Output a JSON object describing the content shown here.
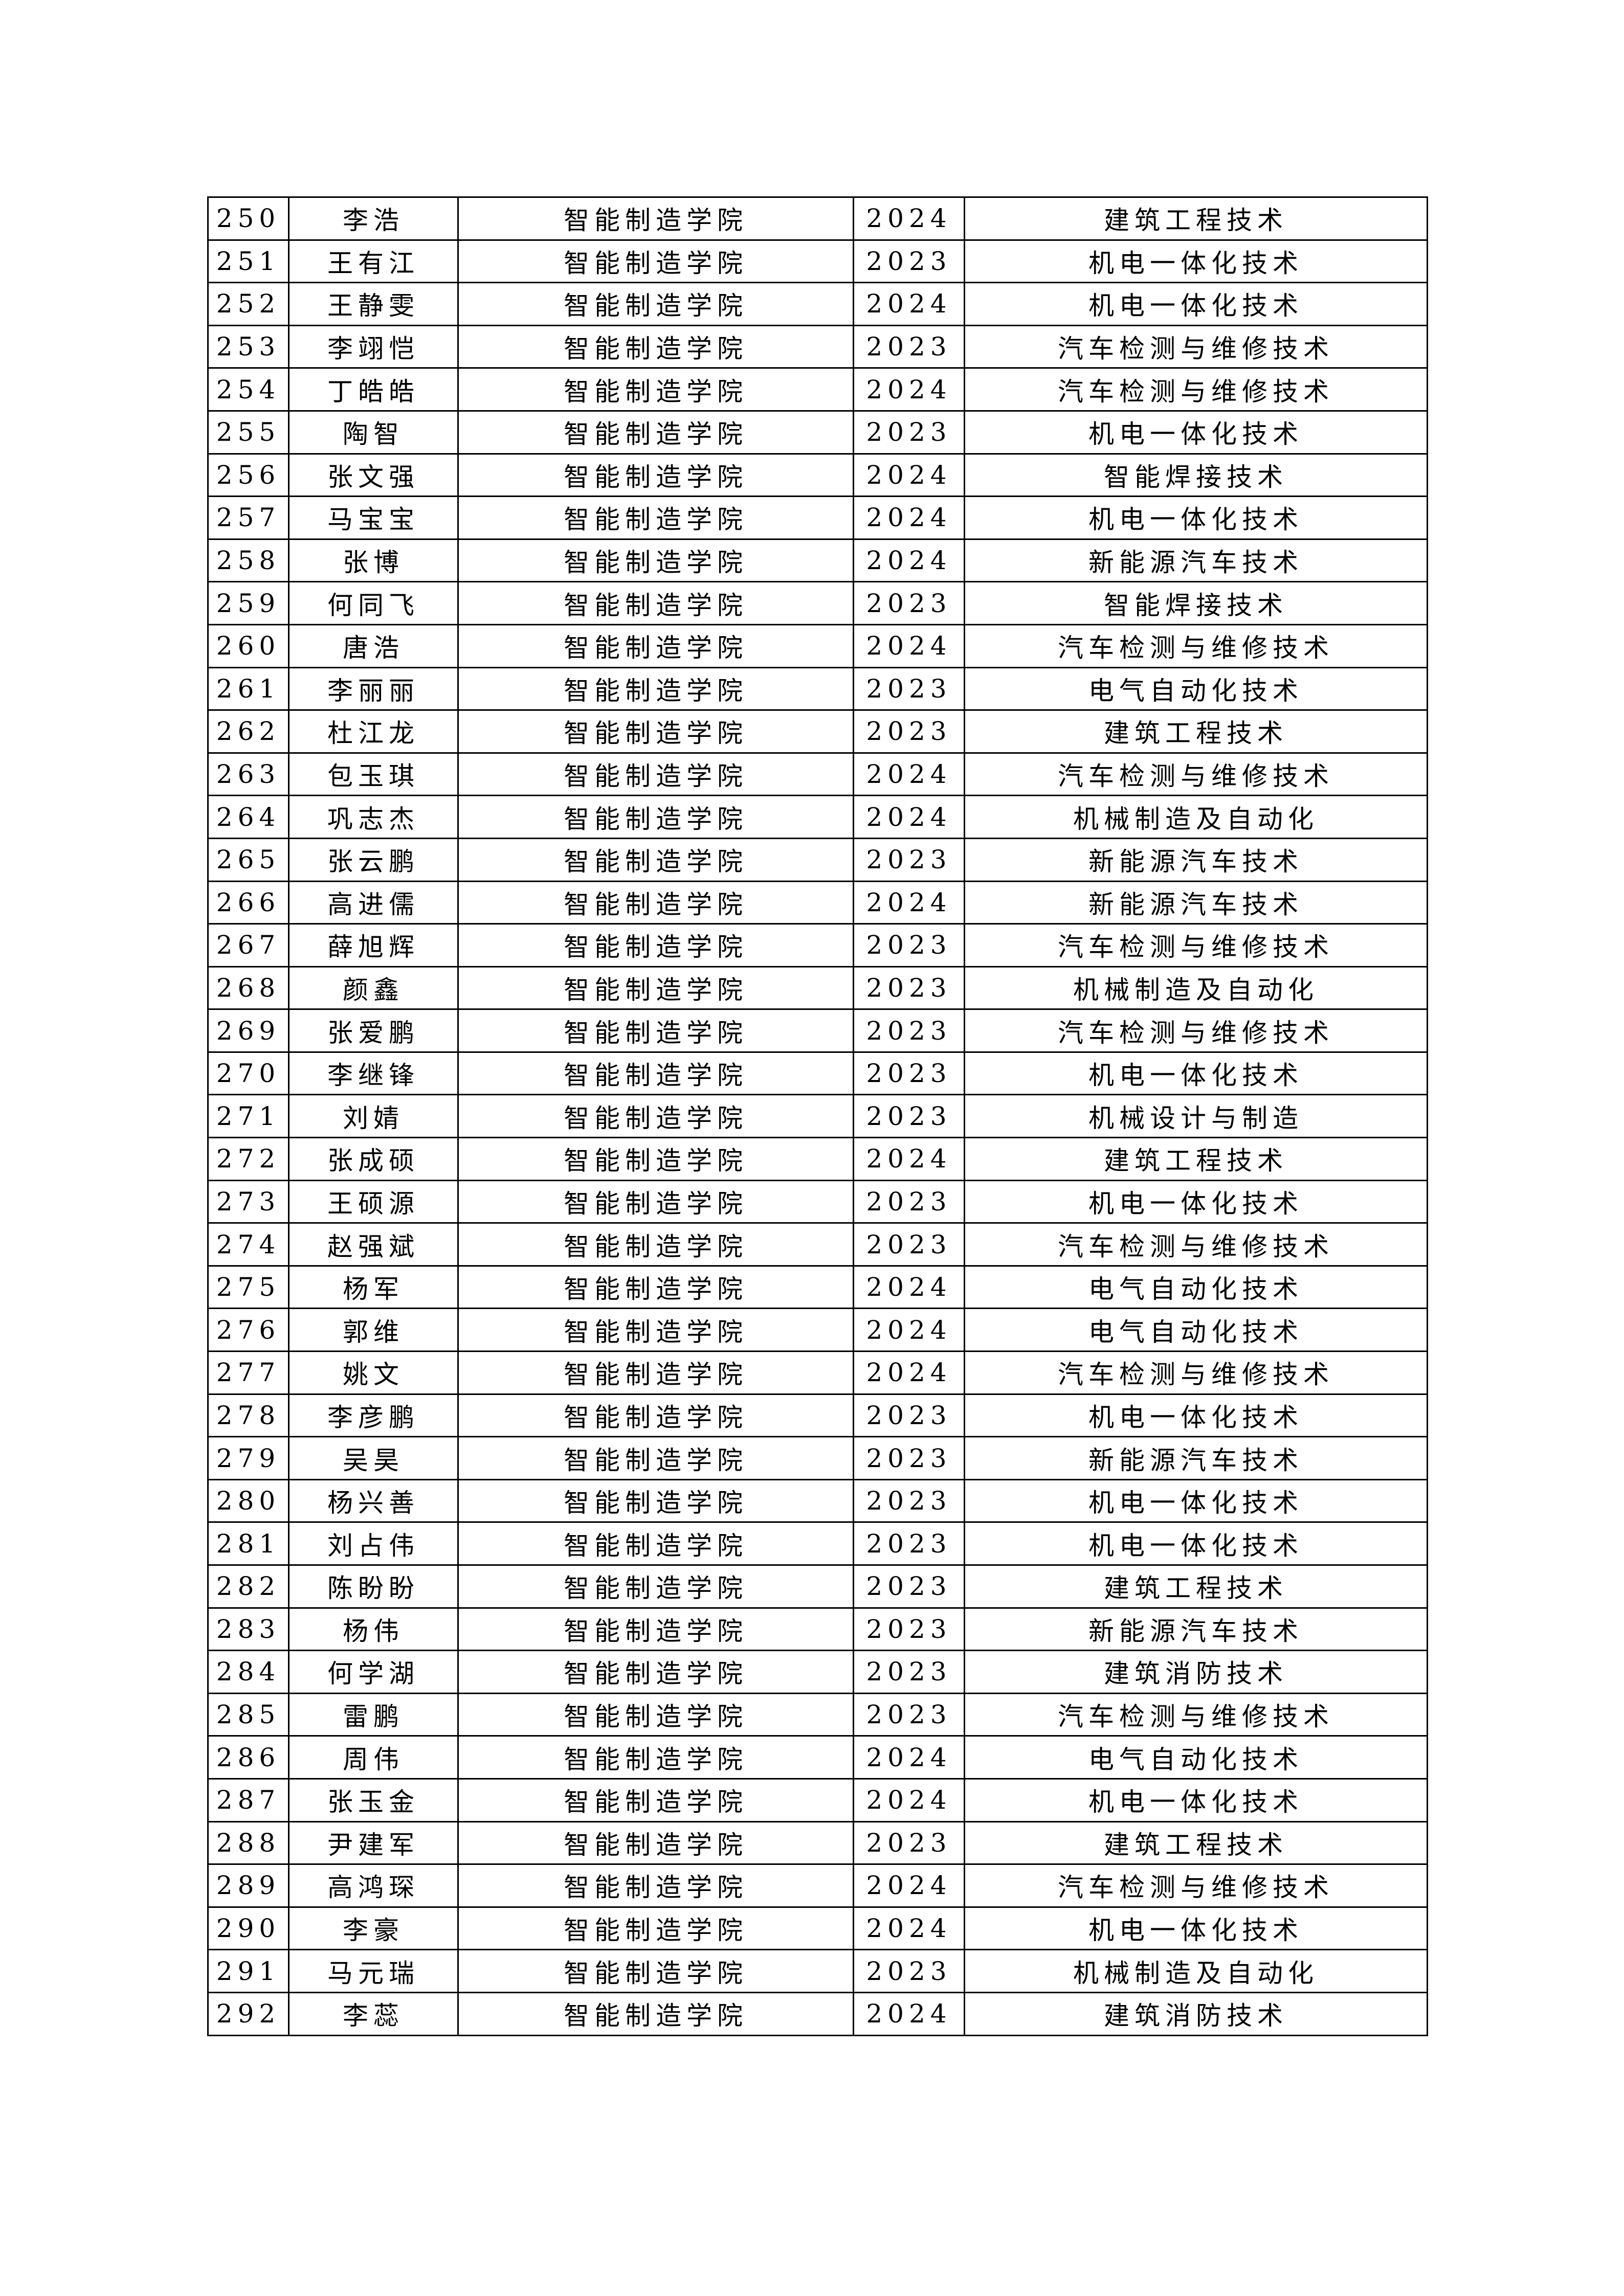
{
  "table": {
    "columns": [
      "no",
      "name",
      "college",
      "grade",
      "major"
    ],
    "rows": [
      [
        "250",
        "李浩",
        "智能制造学院",
        "2024",
        "建筑工程技术"
      ],
      [
        "251",
        "王有江",
        "智能制造学院",
        "2023",
        "机电一体化技术"
      ],
      [
        "252",
        "王静雯",
        "智能制造学院",
        "2024",
        "机电一体化技术"
      ],
      [
        "253",
        "李翊恺",
        "智能制造学院",
        "2023",
        "汽车检测与维修技术"
      ],
      [
        "254",
        "丁皓皓",
        "智能制造学院",
        "2024",
        "汽车检测与维修技术"
      ],
      [
        "255",
        "陶智",
        "智能制造学院",
        "2023",
        "机电一体化技术"
      ],
      [
        "256",
        "张文强",
        "智能制造学院",
        "2024",
        "智能焊接技术"
      ],
      [
        "257",
        "马宝宝",
        "智能制造学院",
        "2024",
        "机电一体化技术"
      ],
      [
        "258",
        "张博",
        "智能制造学院",
        "2024",
        "新能源汽车技术"
      ],
      [
        "259",
        "何同飞",
        "智能制造学院",
        "2023",
        "智能焊接技术"
      ],
      [
        "260",
        "唐浩",
        "智能制造学院",
        "2024",
        "汽车检测与维修技术"
      ],
      [
        "261",
        "李丽丽",
        "智能制造学院",
        "2023",
        "电气自动化技术"
      ],
      [
        "262",
        "杜江龙",
        "智能制造学院",
        "2023",
        "建筑工程技术"
      ],
      [
        "263",
        "包玉琪",
        "智能制造学院",
        "2024",
        "汽车检测与维修技术"
      ],
      [
        "264",
        "巩志杰",
        "智能制造学院",
        "2024",
        "机械制造及自动化"
      ],
      [
        "265",
        "张云鹏",
        "智能制造学院",
        "2023",
        "新能源汽车技术"
      ],
      [
        "266",
        "高进儒",
        "智能制造学院",
        "2024",
        "新能源汽车技术"
      ],
      [
        "267",
        "薛旭辉",
        "智能制造学院",
        "2023",
        "汽车检测与维修技术"
      ],
      [
        "268",
        "颜鑫",
        "智能制造学院",
        "2023",
        "机械制造及自动化"
      ],
      [
        "269",
        "张爱鹏",
        "智能制造学院",
        "2023",
        "汽车检测与维修技术"
      ],
      [
        "270",
        "李继锋",
        "智能制造学院",
        "2023",
        "机电一体化技术"
      ],
      [
        "271",
        "刘婧",
        "智能制造学院",
        "2023",
        "机械设计与制造"
      ],
      [
        "272",
        "张成硕",
        "智能制造学院",
        "2024",
        "建筑工程技术"
      ],
      [
        "273",
        "王硕源",
        "智能制造学院",
        "2023",
        "机电一体化技术"
      ],
      [
        "274",
        "赵强斌",
        "智能制造学院",
        "2023",
        "汽车检测与维修技术"
      ],
      [
        "275",
        "杨军",
        "智能制造学院",
        "2024",
        "电气自动化技术"
      ],
      [
        "276",
        "郭维",
        "智能制造学院",
        "2024",
        "电气自动化技术"
      ],
      [
        "277",
        "姚文",
        "智能制造学院",
        "2024",
        "汽车检测与维修技术"
      ],
      [
        "278",
        "李彦鹏",
        "智能制造学院",
        "2023",
        "机电一体化技术"
      ],
      [
        "279",
        "吴昊",
        "智能制造学院",
        "2023",
        "新能源汽车技术"
      ],
      [
        "280",
        "杨兴善",
        "智能制造学院",
        "2023",
        "机电一体化技术"
      ],
      [
        "281",
        "刘占伟",
        "智能制造学院",
        "2023",
        "机电一体化技术"
      ],
      [
        "282",
        "陈盼盼",
        "智能制造学院",
        "2023",
        "建筑工程技术"
      ],
      [
        "283",
        "杨伟",
        "智能制造学院",
        "2023",
        "新能源汽车技术"
      ],
      [
        "284",
        "何学湖",
        "智能制造学院",
        "2023",
        "建筑消防技术"
      ],
      [
        "285",
        "雷鹏",
        "智能制造学院",
        "2023",
        "汽车检测与维修技术"
      ],
      [
        "286",
        "周伟",
        "智能制造学院",
        "2024",
        "电气自动化技术"
      ],
      [
        "287",
        "张玉金",
        "智能制造学院",
        "2024",
        "机电一体化技术"
      ],
      [
        "288",
        "尹建军",
        "智能制造学院",
        "2023",
        "建筑工程技术"
      ],
      [
        "289",
        "高鸿琛",
        "智能制造学院",
        "2024",
        "汽车检测与维修技术"
      ],
      [
        "290",
        "李豪",
        "智能制造学院",
        "2024",
        "机电一体化技术"
      ],
      [
        "291",
        "马元瑞",
        "智能制造学院",
        "2023",
        "机械制造及自动化"
      ],
      [
        "292",
        "李蕊",
        "智能制造学院",
        "2024",
        "建筑消防技术"
      ]
    ]
  }
}
